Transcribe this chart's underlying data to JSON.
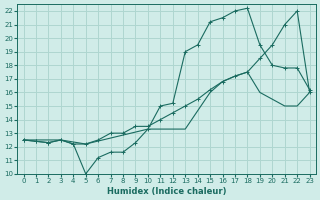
{
  "xlabel": "Humidex (Indice chaleur)",
  "ylabel": "",
  "bg_color": "#d0ece8",
  "grid_color": "#aed6d0",
  "line_color": "#1a6b60",
  "xlim": [
    -0.5,
    23.5
  ],
  "ylim": [
    10,
    22.5
  ],
  "yticks": [
    10,
    11,
    12,
    13,
    14,
    15,
    16,
    17,
    18,
    19,
    20,
    21,
    22
  ],
  "xticks": [
    0,
    1,
    2,
    3,
    4,
    5,
    6,
    7,
    8,
    9,
    10,
    11,
    12,
    13,
    14,
    15,
    16,
    17,
    18,
    19,
    20,
    21,
    22,
    23
  ],
  "curve1_x": [
    0,
    1,
    2,
    3,
    4,
    5,
    6,
    7,
    8,
    9,
    10,
    11,
    12,
    13,
    14,
    15,
    16,
    17,
    18,
    19,
    20,
    21,
    22,
    23
  ],
  "curve1_y": [
    12.5,
    12.4,
    12.3,
    12.5,
    12.2,
    10.0,
    11.2,
    11.6,
    11.6,
    12.3,
    13.3,
    15.0,
    15.2,
    19.0,
    19.5,
    21.2,
    21.5,
    22.0,
    22.2,
    19.5,
    18.0,
    17.8,
    17.8,
    16.2
  ],
  "curve2_x": [
    0,
    1,
    2,
    3,
    4,
    5,
    6,
    7,
    8,
    9,
    10,
    11,
    12,
    13,
    14,
    15,
    16,
    17,
    18,
    19,
    20,
    21,
    22,
    23
  ],
  "curve2_y": [
    12.5,
    12.4,
    12.3,
    12.5,
    12.2,
    12.2,
    12.5,
    13.0,
    13.0,
    13.5,
    13.5,
    14.0,
    14.5,
    15.0,
    15.5,
    16.2,
    16.8,
    17.2,
    17.5,
    18.5,
    19.5,
    21.0,
    22.0,
    16.0
  ],
  "curve3_x": [
    0,
    3,
    5,
    10,
    13,
    15,
    16,
    17,
    18,
    19,
    20,
    21,
    22,
    23
  ],
  "curve3_y": [
    12.5,
    12.5,
    12.2,
    13.3,
    13.3,
    16.0,
    16.8,
    17.2,
    17.5,
    16.0,
    15.5,
    15.0,
    15.0,
    16.0
  ]
}
